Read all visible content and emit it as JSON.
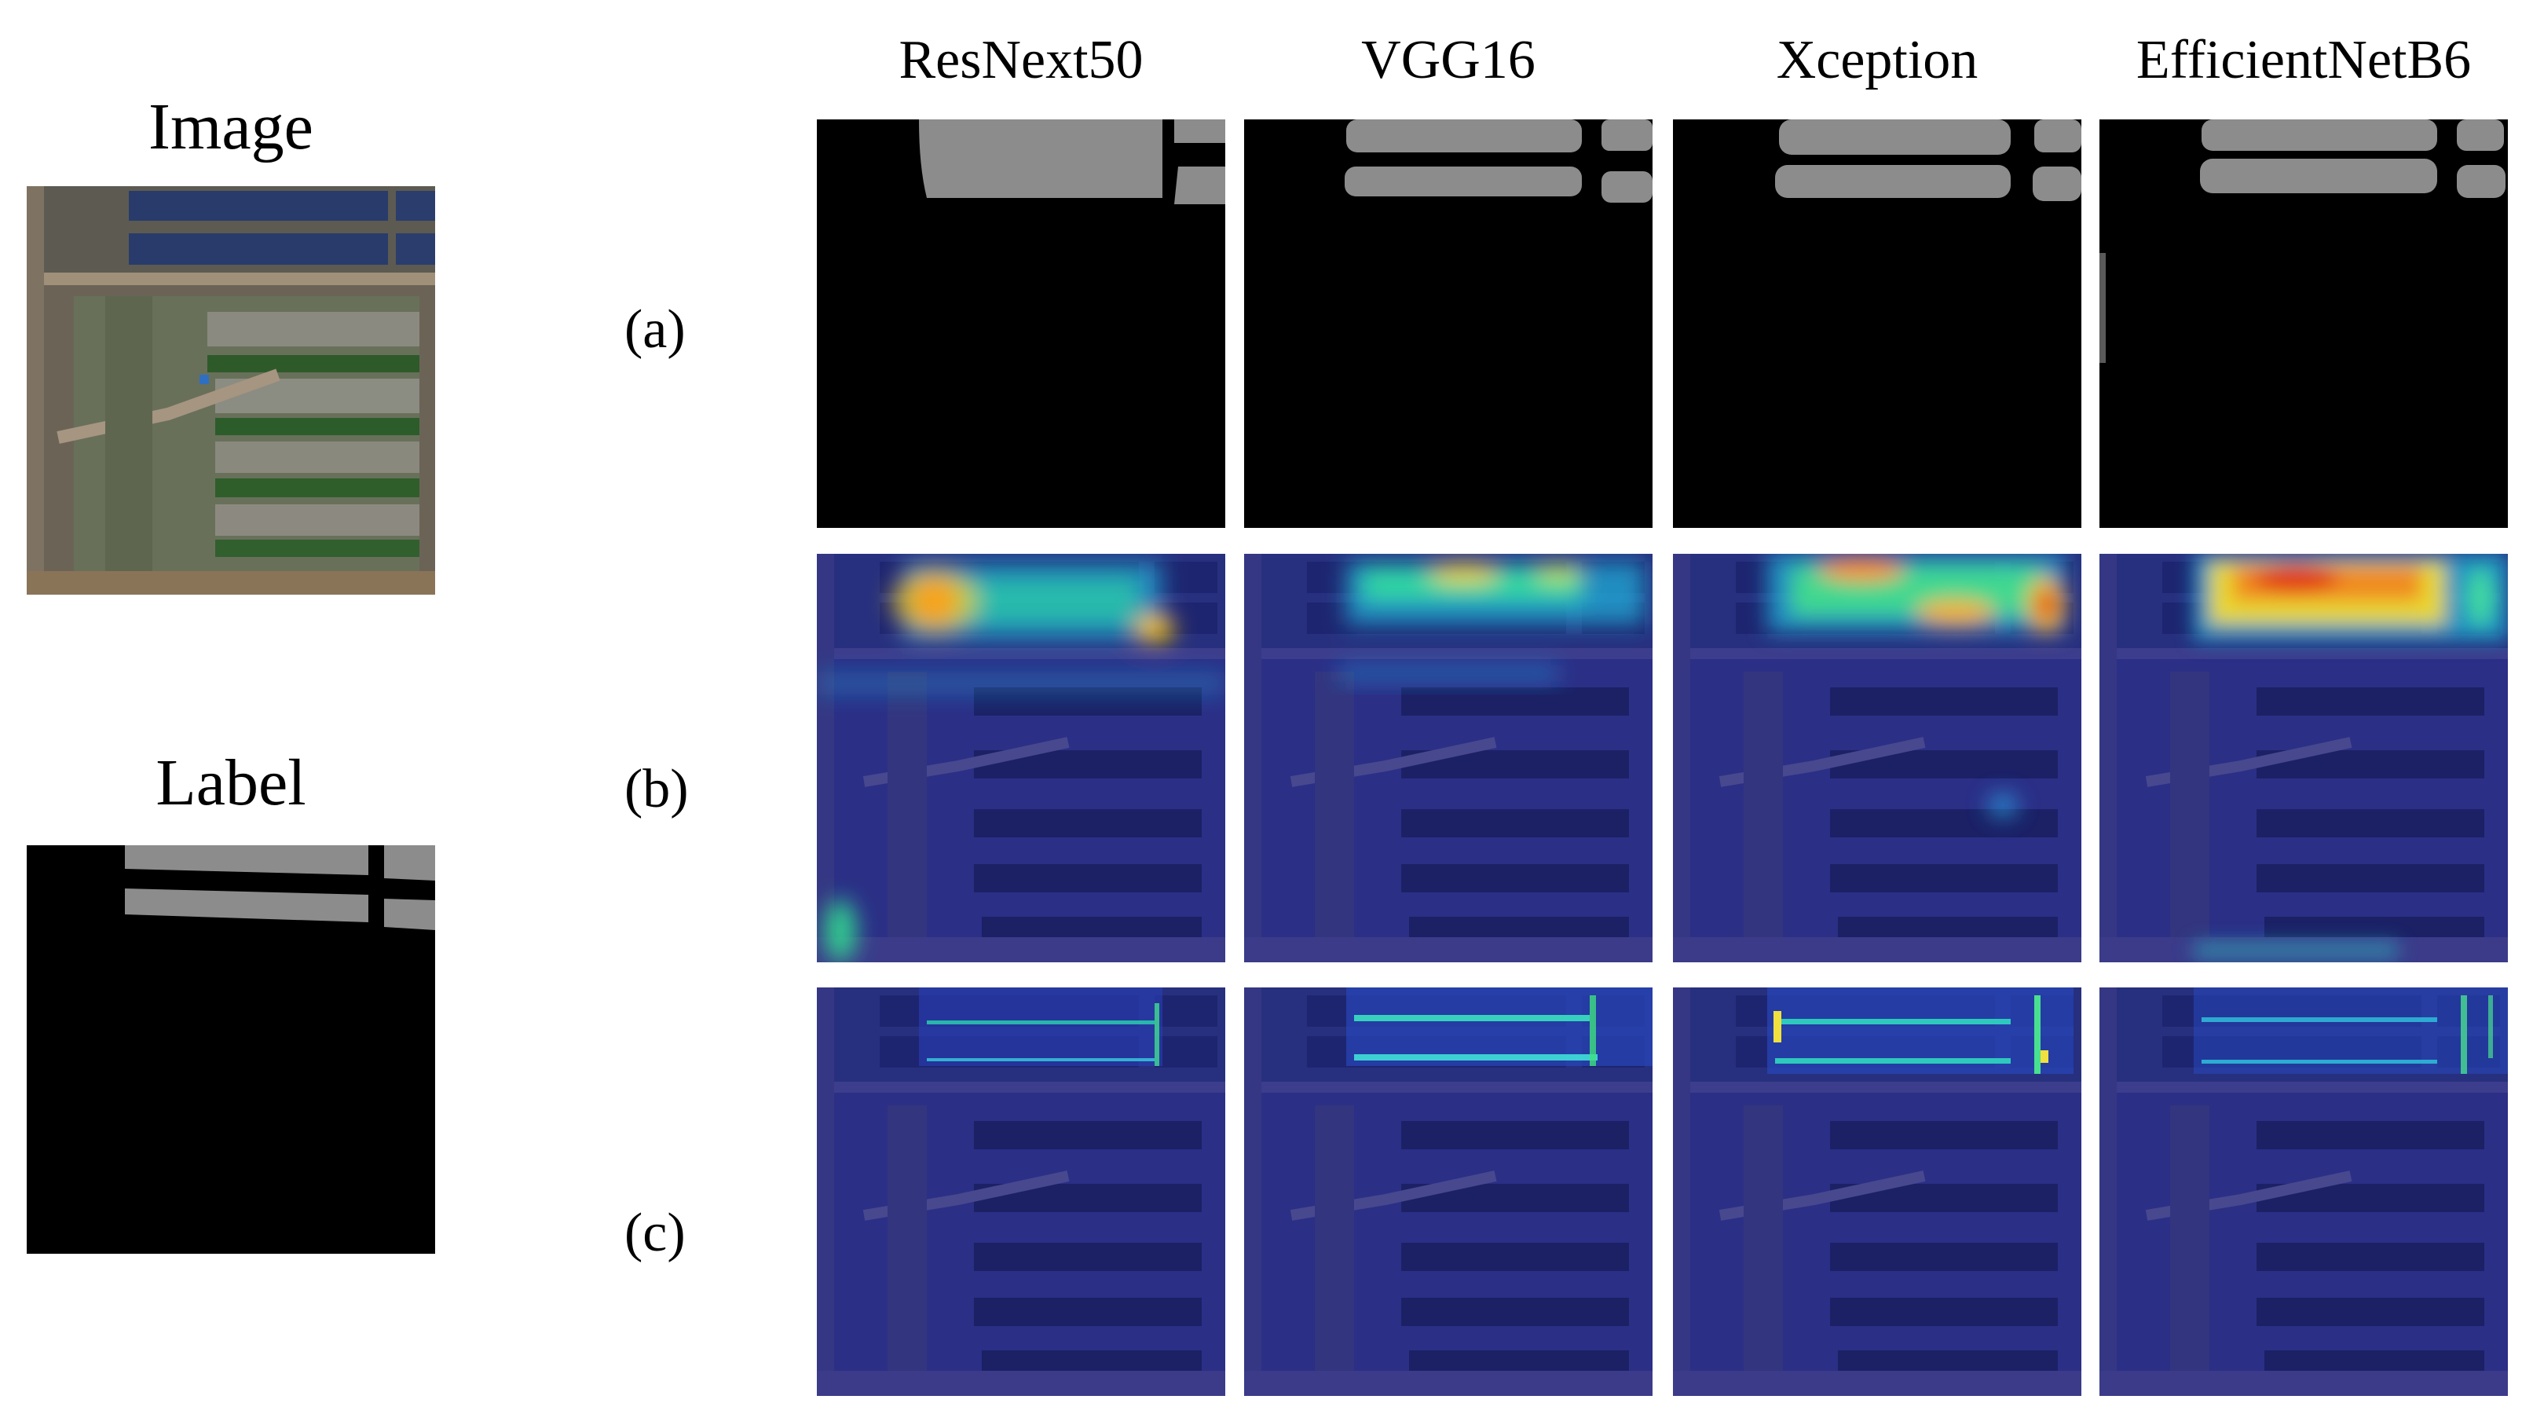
{
  "figure": {
    "image_title": "Image",
    "label_title": "Label",
    "columns": [
      "ResNext50",
      "VGG16",
      "Xception",
      "EfficientNetB6"
    ],
    "rows": [
      "(a)",
      "(b)",
      "(c)"
    ]
  },
  "colors": {
    "background": "#ffffff",
    "mask_background": "#000000",
    "mask_foreground": "#8c8c8c",
    "heatmap_base": "#2a2f8f"
  }
}
